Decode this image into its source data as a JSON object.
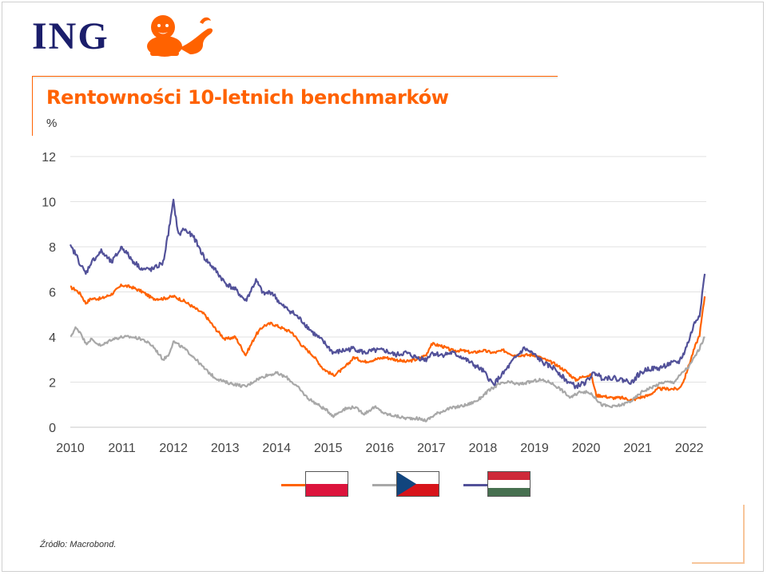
{
  "logo": {
    "text": "ING",
    "brand_color": "#1b1e6b",
    "lion_color": "#ff6200"
  },
  "unit_label": "%",
  "source": "Źródło: Macrobond.",
  "chart_data": {
    "type": "line",
    "title": "Rentowności 10-letnich benchmarków",
    "xlabel": "",
    "ylabel": "%",
    "xlim": [
      2010,
      2022.33
    ],
    "ylim": [
      0,
      12
    ],
    "x_ticks": [
      "2010",
      "2011",
      "2012",
      "2013",
      "2014",
      "2015",
      "2016",
      "2017",
      "2018",
      "2019",
      "2020",
      "2021",
      "2022"
    ],
    "y_ticks": [
      "0",
      "2",
      "4",
      "6",
      "8",
      "10",
      "12"
    ],
    "grid": "horizontal",
    "legend": "bottom-center",
    "series": [
      {
        "name": "Poland",
        "flag": "poland",
        "color": "#ff6200",
        "x": [
          2010.0,
          2010.1,
          2010.2,
          2010.3,
          2010.4,
          2010.6,
          2010.8,
          2011.0,
          2011.2,
          2011.4,
          2011.6,
          2011.8,
          2012.0,
          2012.2,
          2012.4,
          2012.6,
          2012.8,
          2013.0,
          2013.2,
          2013.4,
          2013.6,
          2013.75,
          2013.9,
          2014.1,
          2014.3,
          2014.5,
          2014.7,
          2014.9,
          2015.1,
          2015.3,
          2015.5,
          2015.7,
          2015.9,
          2016.1,
          2016.3,
          2016.5,
          2016.7,
          2016.9,
          2017.0,
          2017.2,
          2017.4,
          2017.6,
          2017.8,
          2018.0,
          2018.2,
          2018.4,
          2018.6,
          2018.8,
          2019.0,
          2019.2,
          2019.4,
          2019.6,
          2019.8,
          2020.0,
          2020.1,
          2020.2,
          2020.3,
          2020.5,
          2020.7,
          2020.9,
          2021.0,
          2021.2,
          2021.4,
          2021.6,
          2021.8,
          2021.9,
          2022.0,
          2022.1,
          2022.2,
          2022.3
        ],
        "y": [
          6.2,
          6.1,
          5.9,
          5.5,
          5.7,
          5.7,
          5.9,
          6.3,
          6.2,
          6.0,
          5.7,
          5.7,
          5.8,
          5.6,
          5.3,
          5.0,
          4.4,
          3.9,
          4.0,
          3.2,
          4.1,
          4.5,
          4.6,
          4.4,
          4.2,
          3.6,
          3.2,
          2.6,
          2.3,
          2.6,
          3.1,
          2.9,
          3.0,
          3.1,
          3.0,
          2.9,
          3.0,
          3.2,
          3.7,
          3.6,
          3.4,
          3.4,
          3.3,
          3.4,
          3.3,
          3.4,
          3.2,
          3.2,
          3.2,
          3.0,
          2.8,
          2.5,
          2.1,
          2.3,
          2.3,
          1.4,
          1.4,
          1.3,
          1.3,
          1.2,
          1.3,
          1.4,
          1.7,
          1.7,
          1.7,
          2.1,
          2.8,
          3.5,
          4.1,
          5.8
        ]
      },
      {
        "name": "Czech Republic",
        "flag": "czech",
        "color": "#a8a8a8",
        "x": [
          2010.0,
          2010.1,
          2010.2,
          2010.3,
          2010.4,
          2010.6,
          2010.8,
          2011.0,
          2011.2,
          2011.4,
          2011.6,
          2011.8,
          2011.9,
          2012.0,
          2012.2,
          2012.4,
          2012.6,
          2012.8,
          2013.0,
          2013.2,
          2013.4,
          2013.6,
          2013.8,
          2014.0,
          2014.2,
          2014.4,
          2014.6,
          2014.8,
          2015.0,
          2015.1,
          2015.3,
          2015.5,
          2015.7,
          2015.9,
          2016.1,
          2016.3,
          2016.5,
          2016.7,
          2016.9,
          2017.1,
          2017.3,
          2017.5,
          2017.7,
          2017.9,
          2018.1,
          2018.3,
          2018.5,
          2018.7,
          2018.9,
          2019.1,
          2019.3,
          2019.5,
          2019.7,
          2019.9,
          2020.1,
          2020.3,
          2020.5,
          2020.7,
          2020.9,
          2021.1,
          2021.3,
          2021.5,
          2021.7,
          2021.9,
          2022.0,
          2022.1,
          2022.2,
          2022.3
        ],
        "y": [
          4.0,
          4.4,
          4.2,
          3.7,
          3.9,
          3.6,
          3.9,
          4.0,
          4.0,
          3.9,
          3.6,
          3.0,
          3.2,
          3.8,
          3.5,
          3.1,
          2.6,
          2.2,
          2.0,
          1.9,
          1.8,
          2.1,
          2.3,
          2.4,
          2.2,
          1.8,
          1.3,
          1.0,
          0.7,
          0.5,
          0.8,
          0.9,
          0.6,
          0.9,
          0.6,
          0.5,
          0.4,
          0.4,
          0.3,
          0.6,
          0.8,
          0.9,
          1.0,
          1.2,
          1.6,
          1.9,
          2.0,
          1.9,
          2.0,
          2.1,
          2.0,
          1.7,
          1.3,
          1.6,
          1.5,
          1.0,
          0.9,
          1.0,
          1.2,
          1.6,
          1.8,
          2.0,
          2.0,
          2.5,
          2.7,
          3.1,
          3.5,
          4.0
        ]
      },
      {
        "name": "Hungary",
        "flag": "hungary",
        "color": "#525199",
        "x": [
          2010.0,
          2010.1,
          2010.2,
          2010.3,
          2010.4,
          2010.6,
          2010.8,
          2011.0,
          2011.2,
          2011.4,
          2011.6,
          2011.8,
          2011.9,
          2012.0,
          2012.1,
          2012.2,
          2012.4,
          2012.6,
          2012.8,
          2013.0,
          2013.2,
          2013.4,
          2013.6,
          2013.75,
          2013.9,
          2014.1,
          2014.3,
          2014.5,
          2014.7,
          2014.9,
          2015.1,
          2015.3,
          2015.5,
          2015.7,
          2015.9,
          2016.1,
          2016.3,
          2016.5,
          2016.7,
          2016.9,
          2017.0,
          2017.2,
          2017.4,
          2017.6,
          2017.8,
          2018.0,
          2018.2,
          2018.4,
          2018.6,
          2018.8,
          2019.0,
          2019.2,
          2019.4,
          2019.6,
          2019.8,
          2020.0,
          2020.1,
          2020.2,
          2020.3,
          2020.5,
          2020.7,
          2020.9,
          2021.0,
          2021.2,
          2021.4,
          2021.6,
          2021.8,
          2021.9,
          2022.0,
          2022.1,
          2022.2,
          2022.3
        ],
        "y": [
          8.0,
          7.7,
          7.2,
          6.8,
          7.3,
          7.8,
          7.3,
          8.0,
          7.4,
          7.0,
          7.0,
          7.3,
          8.6,
          10.0,
          8.5,
          8.8,
          8.4,
          7.5,
          7.0,
          6.4,
          6.1,
          5.6,
          6.5,
          5.9,
          6.0,
          5.4,
          5.1,
          4.7,
          4.2,
          3.8,
          3.3,
          3.4,
          3.5,
          3.3,
          3.4,
          3.4,
          3.2,
          3.3,
          3.1,
          3.0,
          3.3,
          3.2,
          3.3,
          3.1,
          2.8,
          2.5,
          1.9,
          2.4,
          3.0,
          3.5,
          3.2,
          2.8,
          2.6,
          2.1,
          1.8,
          2.0,
          2.3,
          2.4,
          2.2,
          2.2,
          2.1,
          2.0,
          2.3,
          2.6,
          2.6,
          2.8,
          2.9,
          3.3,
          3.9,
          4.6,
          5.0,
          6.8
        ]
      }
    ]
  }
}
